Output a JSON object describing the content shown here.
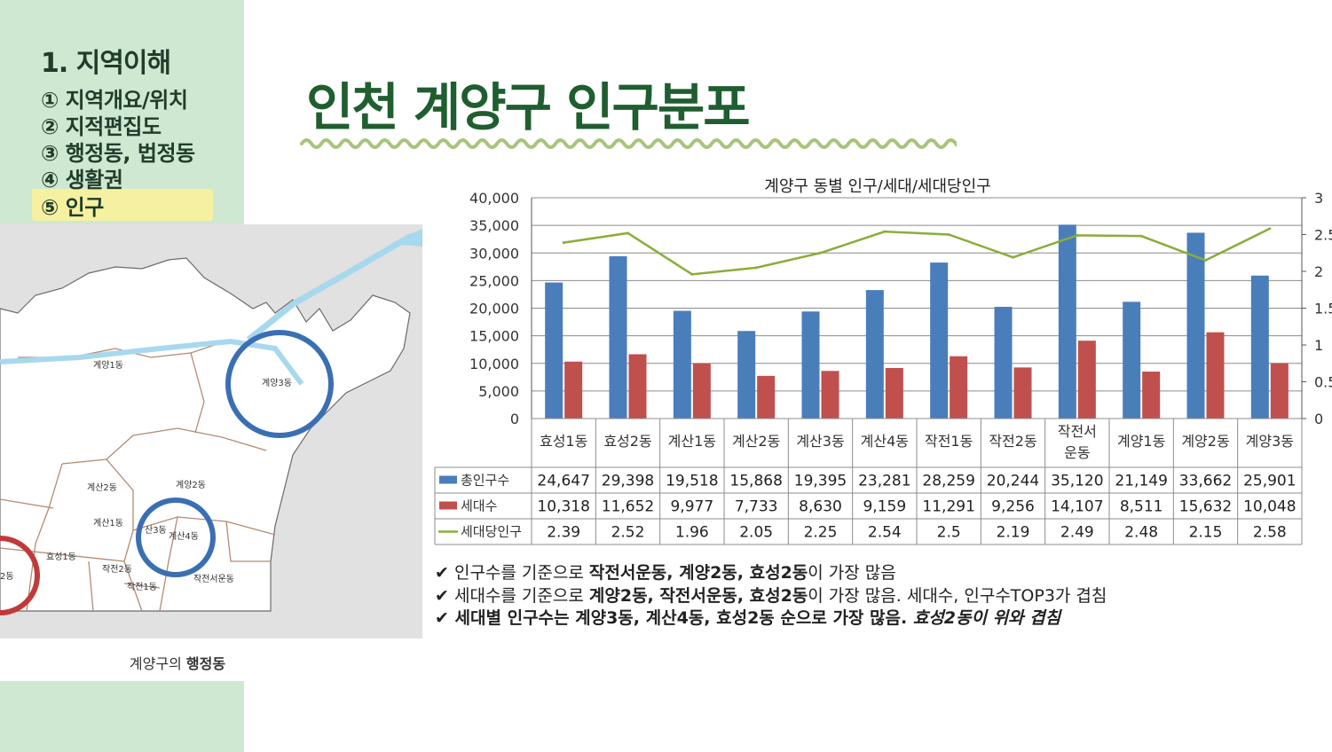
{
  "sidebar": {
    "section_title": "1. 지역이해",
    "items": [
      {
        "label": "① 지역개요/위치"
      },
      {
        "label": "② 지적편집도"
      },
      {
        "label": "③ 행정동, 법정동"
      },
      {
        "label": "④ 생활권"
      },
      {
        "label": "⑤ 인구"
      }
    ]
  },
  "page_title": "인천 계양구 인구분포",
  "map": {
    "caption_prefix": "계양구의",
    "caption_bold": "행정동",
    "labels": [
      "계양1동",
      "계양3동",
      "계산2동",
      "계양2동",
      "계산1동",
      "효성1동",
      "산3동",
      "계산4동",
      "작전2동",
      "작전1동",
      "작전서운동",
      "2동"
    ]
  },
  "colors": {
    "sidebar_bg": "#cfe8d2",
    "title_green": "#1f5e2f",
    "bar_total": "#4a7ebb",
    "bar_household": "#c0504d",
    "line_per_household": "#8aad3a",
    "circle_blue": "#3b6fb3",
    "circle_red": "#c0393b"
  },
  "chart_data": {
    "type": "bar",
    "title": "계양구 동별 인구/세대/세대당인구",
    "categories": [
      "효성1동",
      "효성2동",
      "계산1동",
      "계산2동",
      "계산3동",
      "계산4동",
      "작전1동",
      "작전2동",
      "작전서운동",
      "계양1동",
      "계양2동",
      "계양3동"
    ],
    "category_lines": [
      [
        "효성1동"
      ],
      [
        "효성2동"
      ],
      [
        "계산1동"
      ],
      [
        "계산2동"
      ],
      [
        "계산3동"
      ],
      [
        "계산4동"
      ],
      [
        "작전1동"
      ],
      [
        "작전2동"
      ],
      [
        "작전서",
        "운동"
      ],
      [
        "계양1동"
      ],
      [
        "계양2동"
      ],
      [
        "계양3동"
      ]
    ],
    "series": [
      {
        "name": "총인구수",
        "kind": "bar",
        "axis": "left",
        "values": [
          24647,
          29398,
          19518,
          15868,
          19395,
          23281,
          28259,
          20244,
          35120,
          21149,
          33662,
          25901
        ],
        "display": [
          "24,647",
          "29,398",
          "19,518",
          "15,868",
          "19,395",
          "23,281",
          "28,259",
          "20,244",
          "35,120",
          "21,149",
          "33,662",
          "25,901"
        ]
      },
      {
        "name": "세대수",
        "kind": "bar",
        "axis": "left",
        "values": [
          10318,
          11652,
          9977,
          7733,
          8630,
          9159,
          11291,
          9256,
          14107,
          8511,
          15632,
          10048
        ],
        "display": [
          "10,318",
          "11,652",
          "9,977",
          "7,733",
          "8,630",
          "9,159",
          "11,291",
          "9,256",
          "14,107",
          "8,511",
          "15,632",
          "10,048"
        ]
      },
      {
        "name": "세대당인구",
        "kind": "line",
        "axis": "right",
        "values": [
          2.39,
          2.52,
          1.96,
          2.05,
          2.25,
          2.54,
          2.5,
          2.19,
          2.49,
          2.48,
          2.15,
          2.58
        ],
        "display": [
          "2.39",
          "2.52",
          "1.96",
          "2.05",
          "2.25",
          "2.54",
          "2.5",
          "2.19",
          "2.49",
          "2.48",
          "2.15",
          "2.58"
        ]
      }
    ],
    "y_left": {
      "ylim": [
        0,
        40000
      ],
      "ticks": [
        "40,000",
        "35,000",
        "30,000",
        "25,000",
        "20,000",
        "15,000",
        "10,000",
        "5,000",
        "0"
      ]
    },
    "y_right": {
      "ylim": [
        0,
        3
      ],
      "ticks": [
        "3",
        "2.5",
        "2",
        "1.5",
        "1",
        "0.5",
        "0"
      ]
    },
    "grid": true,
    "legend": "data-table"
  },
  "notes": [
    {
      "check": "✔",
      "pre": " 인구수를 기준으로 ",
      "bold": "작전서운동, 계양2동, 효성2동",
      "post": "이 가장 많음",
      "italic": ""
    },
    {
      "check": "✔",
      "pre": " 세대수를 기준으로 ",
      "bold": "계양2동, 작전서운동, 효성2동",
      "post": "이 가장 많음. 세대수, 인구수TOP3가 겹침",
      "italic": ""
    },
    {
      "check": "✔",
      "pre": "",
      "bold": " 세대별 인구수는 계양3동, 계산4동, 효성2동 순으로 가장 많음.",
      "post": "",
      "italic": " 효성2동이 위와 겹침"
    }
  ]
}
